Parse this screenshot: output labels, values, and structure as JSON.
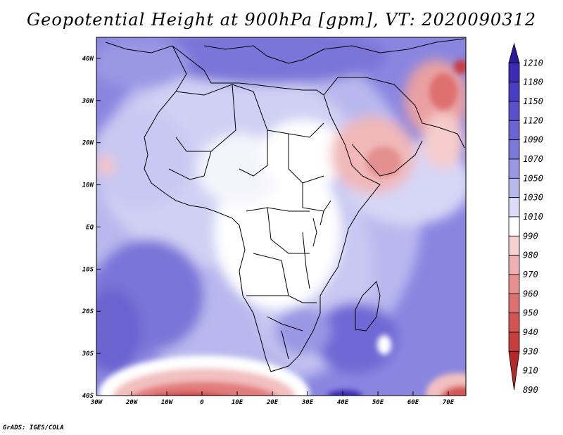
{
  "title": "Geopotential Height at 900hPa [gpm], VT: 2020090312",
  "credit": "GrADS: IGES/COLA",
  "map": {
    "lon_range": [
      -30,
      75
    ],
    "lat_range": [
      -40,
      45
    ],
    "lon_ticks": [
      {
        "v": -30,
        "label": "30W"
      },
      {
        "v": -20,
        "label": "20W"
      },
      {
        "v": -10,
        "label": "10W"
      },
      {
        "v": 0,
        "label": "0"
      },
      {
        "v": 10,
        "label": "10E"
      },
      {
        "v": 20,
        "label": "20E"
      },
      {
        "v": 30,
        "label": "30E"
      },
      {
        "v": 40,
        "label": "40E"
      },
      {
        "v": 50,
        "label": "50E"
      },
      {
        "v": 60,
        "label": "60E"
      },
      {
        "v": 70,
        "label": "70E"
      }
    ],
    "lat_ticks": [
      {
        "v": 40,
        "label": "40N"
      },
      {
        "v": 30,
        "label": "30N"
      },
      {
        "v": 20,
        "label": "20N"
      },
      {
        "v": 10,
        "label": "10N"
      },
      {
        "v": 0,
        "label": "EQ"
      },
      {
        "v": -10,
        "label": "10S"
      },
      {
        "v": -20,
        "label": "20S"
      },
      {
        "v": -30,
        "label": "30S"
      },
      {
        "v": -40,
        "label": "40S"
      }
    ]
  },
  "colorbar": {
    "levels": [
      "1210",
      "1180",
      "1150",
      "1120",
      "1090",
      "1070",
      "1050",
      "1030",
      "1010",
      "990",
      "980",
      "970",
      "960",
      "950",
      "940",
      "930",
      "910",
      "890"
    ],
    "colors": [
      "#2a1a9e",
      "#3a2ab4",
      "#4a3cc4",
      "#5a50cc",
      "#6a64d4",
      "#7c78dc",
      "#9a98e4",
      "#b8b8ee",
      "#dcdcf8",
      "#ffffff",
      "#f6d0d0",
      "#eeb0b0",
      "#e69090",
      "#de7070",
      "#d45454",
      "#c83c3c",
      "#b42828"
    ]
  },
  "chart_data": {
    "type": "heatmap",
    "title": "Geopotential Height at 900hPa [gpm], VT: 2020090312",
    "xlabel": "",
    "ylabel": "",
    "xlim": [
      -30,
      75
    ],
    "ylim": [
      -40,
      45
    ],
    "colorbar_levels": [
      1210,
      1180,
      1150,
      1120,
      1090,
      1070,
      1050,
      1030,
      1010,
      990,
      980,
      970,
      960,
      950,
      940,
      930,
      910,
      890
    ]
  }
}
